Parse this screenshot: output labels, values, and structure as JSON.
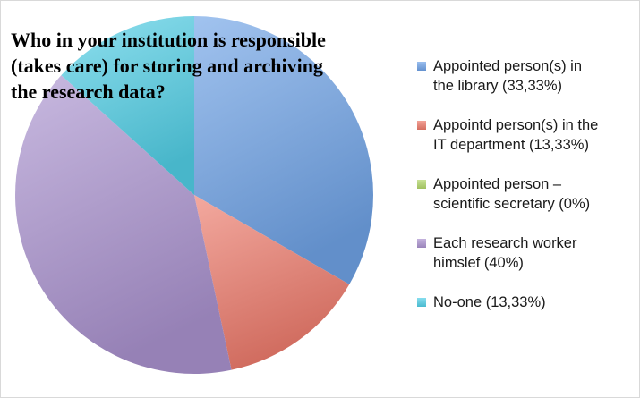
{
  "chart_data": {
    "type": "pie",
    "title": [
      "Who in your institution is responsible",
      "(takes care) for storing and archiving",
      "the research data?"
    ],
    "legend_position": "right",
    "slices": [
      {
        "label": "Appointed person(s) in the library (33,33%)",
        "value": 33.33,
        "color": "#6fa2e6"
      },
      {
        "label": "Appointd person(s) in the IT department (13,33%)",
        "value": 13.33,
        "color": "#ec7a6b"
      },
      {
        "label": "Appointed person – scientific secretary (0%)",
        "value": 0,
        "color": "#b2d56a"
      },
      {
        "label": "Each research worker himslef (40%)",
        "value": 40,
        "color": "#ab93cf"
      },
      {
        "label": "No-one (13,33%)",
        "value": 13.33,
        "color": "#52cfe6"
      }
    ]
  },
  "legend": [
    {
      "line1": "Appointed person(s) in",
      "line2": "the library (33,33%)"
    },
    {
      "line1": "Appointd person(s) in the",
      "line2": "IT department (13,33%)"
    },
    {
      "line1": "Appointed person –",
      "line2": "scientific secretary (0%)"
    },
    {
      "line1": "Each research worker",
      "line2": "himslef (40%)"
    },
    {
      "line1": "No-one (13,33%)",
      "line2": ""
    }
  ]
}
